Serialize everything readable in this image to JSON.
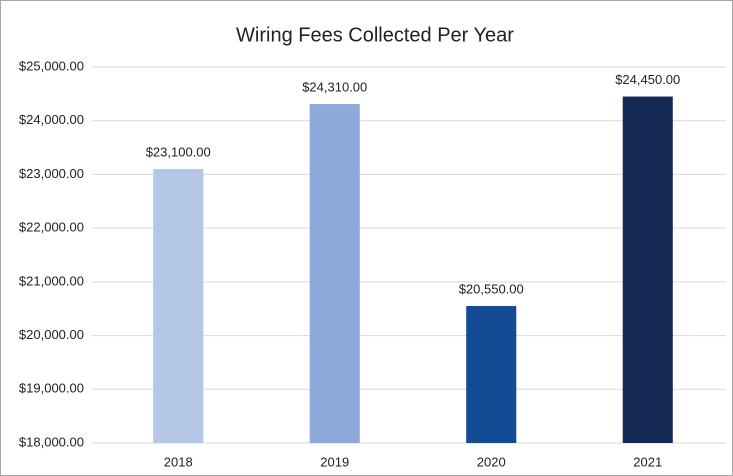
{
  "chart_data": {
    "type": "bar",
    "title": "Wiring Fees Collected Per Year",
    "categories": [
      "2018",
      "2019",
      "2020",
      "2021"
    ],
    "values": [
      23100,
      24310,
      20550,
      24450
    ],
    "value_labels": [
      "$23,100.00",
      "$24,310.00",
      "$20,550.00",
      "$24,450.00"
    ],
    "colors": [
      "#b4c7e7",
      "#8eaadb",
      "#134b94",
      "#152a55"
    ],
    "ylim": [
      18000,
      25000
    ],
    "yticks": [
      {
        "value": 18000,
        "label": "$18,000.00"
      },
      {
        "value": 19000,
        "label": "$19,000.00"
      },
      {
        "value": 20000,
        "label": "$20,000.00"
      },
      {
        "value": 21000,
        "label": "$21,000.00"
      },
      {
        "value": 22000,
        "label": "$22,000.00"
      },
      {
        "value": 23000,
        "label": "$23,000.00"
      },
      {
        "value": 24000,
        "label": "$24,000.00"
      },
      {
        "value": 25000,
        "label": "$25,000.00"
      }
    ],
    "grid": true
  }
}
